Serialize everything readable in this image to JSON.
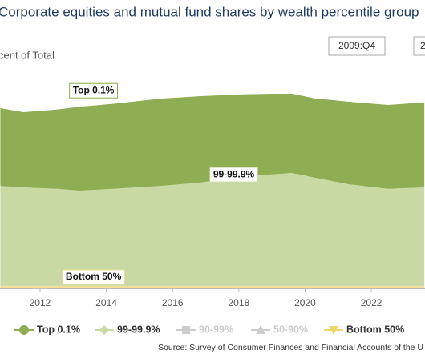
{
  "chart_data": {
    "type": "stacked_area",
    "title": "Corporate equities and mutual fund shares by wealth percentile group",
    "y_axis_label": "cent of Total",
    "range_start": "2009:Q4",
    "range_end": "2",
    "source": "Source: Survey of Consumer Finances and Financial Accounts of the U",
    "x": [
      2010.8,
      2011.5,
      2012.5,
      2013.2,
      2014.2,
      2015.6,
      2016.8,
      2018.0,
      2019.0,
      2019.6,
      2020.3,
      2021.3,
      2022.5,
      2023.6
    ],
    "xlim": [
      2010.79,
      2023.62
    ],
    "xticks": [
      2012,
      2014,
      2016,
      2018,
      2020,
      2022
    ],
    "ylim": [
      0,
      70
    ],
    "series": [
      {
        "name": "Top 0.1%",
        "color": "#8fad52",
        "values": [
          21.6,
          20.9,
          22.0,
          23.3,
          23.6,
          24.2,
          24.0,
          22.9,
          22.4,
          22.0,
          22.0,
          22.9,
          23.3,
          23.6
        ]
      },
      {
        "name": "99-99.9%",
        "color": "#c9d9a3",
        "values": [
          27.7,
          27.3,
          26.9,
          26.4,
          26.9,
          27.7,
          28.6,
          30.2,
          30.9,
          31.3,
          30.0,
          28.2,
          26.9,
          27.3
        ]
      },
      {
        "name": "90-99%",
        "color": "#cccccc",
        "hidden": true
      },
      {
        "name": "50-90%",
        "color": "#cccccc",
        "hidden": true
      },
      {
        "name": "Bottom 50%",
        "color": "#f3df96",
        "values": [
          0.7,
          0.7,
          0.7,
          0.7,
          0.7,
          0.7,
          0.7,
          0.7,
          0.7,
          0.7,
          0.7,
          0.7,
          0.7,
          0.7
        ]
      }
    ],
    "annotations": [
      {
        "text": "Top 0.1%",
        "series": 0
      },
      {
        "text": "99-99.9%",
        "series": 1
      },
      {
        "text": "Bottom 50%",
        "series": 4
      }
    ]
  }
}
